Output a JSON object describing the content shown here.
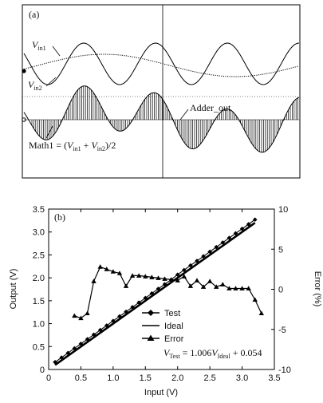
{
  "chart_data": [
    {
      "panel_label": "(a)",
      "type": "line",
      "title": "",
      "annotations": {
        "vin1": {
          "main": "V",
          "sub": "in1"
        },
        "vin2": {
          "main": "V",
          "sub": "in2"
        },
        "adder": "Adder_out",
        "math": {
          "prefix": "Math1 = (",
          "v1": "V",
          "s1": "in1",
          "plus": " + ",
          "v2": "V",
          "s2": "in2",
          "suffix": ")/2"
        }
      },
      "series": [
        {
          "name": "V_in1",
          "description": "slow sinusoid"
        },
        {
          "name": "V_in2",
          "description": "faster sinusoid"
        },
        {
          "name": "Adder_out",
          "description": "sampled envelope output"
        },
        {
          "name": "Math1",
          "description": "(V_in1 + V_in2)/2"
        }
      ]
    },
    {
      "panel_label": "(b)",
      "type": "line",
      "xlabel": "Input (V)",
      "ylabel": "Output (V)",
      "y2label": "Error (%)",
      "xlim": [
        0,
        3.5
      ],
      "ylim": [
        0,
        3.5
      ],
      "y2lim": [
        -10,
        10
      ],
      "xticks": [
        "0",
        "0.5",
        "1.0",
        "1.5",
        "2.0",
        "2.5",
        "3.0",
        "3.5"
      ],
      "yticks": [
        "0",
        "0.5",
        "1.0",
        "1.5",
        "2.0",
        "2.5",
        "3.0",
        "3.5"
      ],
      "y2ticks": [
        "-10",
        "-5",
        "0",
        "5",
        "10"
      ],
      "legend_position": "bottom-right",
      "legend": [
        "Test",
        "Ideal",
        "Error"
      ],
      "equation": {
        "v": "V",
        "vsub": "Test",
        "eq": " = 1.006",
        "v2": "V",
        "v2sub": "Ideal",
        "rest": " + 0.054"
      },
      "series": [
        {
          "name": "Test",
          "x": [
            0.1,
            0.2,
            0.3,
            0.4,
            0.5,
            0.6,
            0.7,
            0.8,
            0.9,
            1.0,
            1.1,
            1.2,
            1.3,
            1.4,
            1.5,
            1.6,
            1.7,
            1.8,
            1.9,
            2.0,
            2.1,
            2.2,
            2.3,
            2.4,
            2.5,
            2.6,
            2.7,
            2.8,
            2.9,
            3.0,
            3.1,
            3.2
          ],
          "y": [
            0.16,
            0.26,
            0.36,
            0.46,
            0.56,
            0.66,
            0.76,
            0.86,
            0.96,
            1.06,
            1.16,
            1.26,
            1.36,
            1.46,
            1.56,
            1.66,
            1.76,
            1.86,
            1.96,
            2.07,
            2.17,
            2.27,
            2.37,
            2.47,
            2.57,
            2.67,
            2.77,
            2.87,
            2.97,
            3.07,
            3.17,
            3.27
          ]
        },
        {
          "name": "Ideal",
          "x": [
            0.1,
            3.2
          ],
          "y": [
            0.1,
            3.2
          ]
        },
        {
          "name": "Error",
          "axis": "right",
          "x": [
            0.4,
            0.5,
            0.6,
            0.7,
            0.8,
            0.9,
            1.0,
            1.1,
            1.2,
            1.3,
            1.4,
            1.5,
            1.6,
            1.7,
            1.8,
            1.9,
            2.0,
            2.1,
            2.2,
            2.3,
            2.4,
            2.5,
            2.6,
            2.7,
            2.8,
            2.9,
            3.0,
            3.1,
            3.2,
            3.3
          ],
          "y": [
            -3.3,
            -3.6,
            -3.0,
            1.0,
            2.8,
            2.5,
            2.2,
            2.0,
            0.4,
            1.7,
            1.7,
            1.6,
            1.5,
            1.4,
            1.3,
            1.2,
            1.1,
            1.6,
            0.4,
            1.1,
            0.3,
            1.0,
            0.3,
            0.6,
            0.1,
            0.1,
            0.1,
            0.1,
            -1.3,
            -3.0
          ]
        }
      ]
    }
  ]
}
